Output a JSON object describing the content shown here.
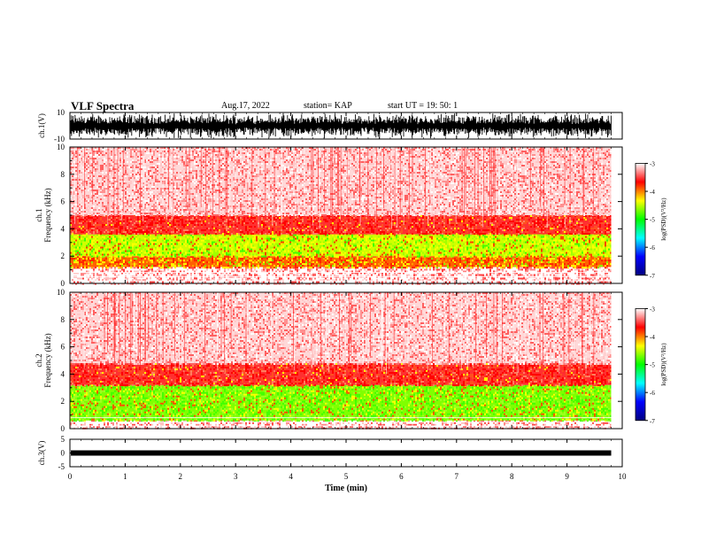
{
  "header": {
    "title": "VLF Spectra",
    "date": "Aug.17, 2022",
    "station": "station= KAP",
    "start": "start  UT =   19: 50: 1"
  },
  "chart_data": [
    {
      "type": "line",
      "name": "ch1-waveform",
      "ylabel": "ch.1(V)",
      "ylim": [
        -10,
        10
      ],
      "yticks": [
        "10",
        "-10"
      ],
      "xlim": [
        0,
        10
      ],
      "grid": false,
      "description_values": "noisy waveform filling most of the -10..10 V range over 0-9.8 min"
    },
    {
      "type": "heatmap",
      "name": "ch1-spectrogram",
      "ylabel": "Frequency (kHz)",
      "channel_label": "ch.1",
      "ylim": [
        0,
        10
      ],
      "yticks": [
        "0",
        "2",
        "4",
        "6",
        "8",
        "10"
      ],
      "xlim": [
        0,
        10
      ],
      "data_extent_min": 9.8,
      "bands": [
        {
          "from_khz": 0.0,
          "to_khz": 1.2,
          "level": "sparse-red"
        },
        {
          "from_khz": 1.2,
          "to_khz": 2.0,
          "level": "red-yellow"
        },
        {
          "from_khz": 2.0,
          "to_khz": 3.6,
          "level": "yellow-green"
        },
        {
          "from_khz": 3.6,
          "to_khz": 5.0,
          "level": "red"
        },
        {
          "from_khz": 5.0,
          "to_khz": 10.0,
          "level": "light-red"
        }
      ],
      "colorbar": {
        "label": "log(PSD)(V²/Hz)",
        "ticks": [
          "-3",
          "-4",
          "-5",
          "-6",
          "-7"
        ],
        "range": [
          -7,
          -3
        ]
      }
    },
    {
      "type": "heatmap",
      "name": "ch2-spectrogram",
      "ylabel": "Frequency (kHz)",
      "channel_label": "ch.2",
      "ylim": [
        0,
        10
      ],
      "yticks": [
        "0",
        "2",
        "4",
        "6",
        "8",
        "10"
      ],
      "xlim": [
        0,
        10
      ],
      "data_extent_min": 9.8,
      "bands": [
        {
          "from_khz": 0.0,
          "to_khz": 0.6,
          "level": "sparse-red"
        },
        {
          "from_khz": 0.6,
          "to_khz": 3.2,
          "level": "green-yellow"
        },
        {
          "from_khz": 3.2,
          "to_khz": 4.8,
          "level": "red"
        },
        {
          "from_khz": 4.8,
          "to_khz": 10.0,
          "level": "light-red"
        }
      ],
      "colorbar": {
        "label": "log(PSD)(V²/Hz)",
        "ticks": [
          "-3",
          "-4",
          "-5",
          "-6",
          "-7"
        ],
        "range": [
          -7,
          -3
        ]
      }
    },
    {
      "type": "line",
      "name": "ch3-waveform",
      "ylabel": "ch.3(V)",
      "ylim": [
        -5,
        5
      ],
      "yticks": [
        "5",
        "0",
        "-5"
      ],
      "xlim": [
        0,
        10
      ],
      "level_v": 0,
      "description_values": "narrow band centered near 0 V over 0-9.8 min"
    }
  ],
  "xaxis": {
    "label": "Time (min)",
    "ticks": [
      "0",
      "1",
      "2",
      "3",
      "4",
      "5",
      "6",
      "7",
      "8",
      "9",
      "10"
    ]
  },
  "colors": {
    "axis": "#000000",
    "colormap": [
      "#ffffff",
      "#ff0000",
      "#ffff00",
      "#00ff00",
      "#00ffff",
      "#0000ff",
      "#000080"
    ]
  }
}
